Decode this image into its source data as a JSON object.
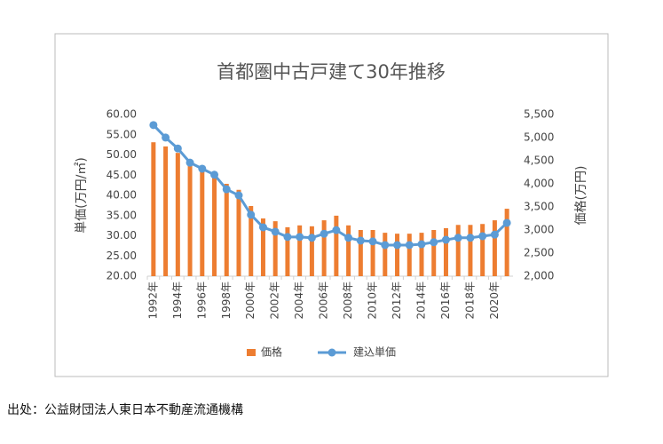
{
  "chart_data": {
    "type": "bar_line",
    "title": "首都圏中古戸建て30年推移",
    "y_label": "単価(万円/㎡)",
    "y2_label": "価格(万円)",
    "categories": [
      "1992年",
      null,
      "1994年",
      null,
      "1996年",
      null,
      "1998年",
      null,
      "2000年",
      null,
      "2002年",
      null,
      "2004年",
      null,
      "2006年",
      null,
      "2008年",
      null,
      "2010年",
      null,
      "2012年",
      null,
      "2014年",
      null,
      "2016年",
      null,
      "2018年",
      null,
      "2020年",
      null
    ],
    "series": [
      {
        "name": "価格",
        "type": "bar",
        "axis": "y2",
        "color": "#ed7d31",
        "values": [
          4900,
          4810,
          4670,
          4460,
          4330,
          4170,
          4000,
          3870,
          3520,
          3250,
          3190,
          3060,
          3100,
          3080,
          3210,
          3310,
          3100,
          3000,
          3000,
          2940,
          2920,
          2920,
          2940,
          3000,
          3040,
          3110,
          3110,
          3130,
          3210,
          3460
        ]
      },
      {
        "name": "建込単価",
        "type": "line",
        "axis": "y",
        "color": "#5b9bd5",
        "values": [
          57.4,
          54.3,
          51.6,
          48.1,
          46.6,
          45.1,
          41.5,
          40.0,
          35.2,
          32.1,
          31.0,
          29.7,
          29.7,
          29.5,
          30.5,
          31.4,
          29.5,
          28.8,
          28.6,
          27.7,
          27.7,
          27.7,
          27.9,
          28.4,
          29.0,
          29.5,
          29.5,
          29.9,
          30.3,
          33.2
        ]
      }
    ],
    "ylim": [
      20,
      60
    ],
    "yticks": [
      {
        "value": 20,
        "label": "20.00"
      },
      {
        "value": 25,
        "label": "25.00"
      },
      {
        "value": 30,
        "label": "30.00"
      },
      {
        "value": 35,
        "label": "35.00"
      },
      {
        "value": 40,
        "label": "40.00"
      },
      {
        "value": 45,
        "label": "45.00"
      },
      {
        "value": 50,
        "label": "50.00"
      },
      {
        "value": 55,
        "label": "55.00"
      },
      {
        "value": 60,
        "label": "60.00"
      }
    ],
    "y2lim": [
      2000,
      5500
    ],
    "y2ticks": [
      {
        "value": 2000,
        "label": "2,000"
      },
      {
        "value": 2500,
        "label": "2,500"
      },
      {
        "value": 3000,
        "label": "3,000"
      },
      {
        "value": 3500,
        "label": "3,500"
      },
      {
        "value": 4000,
        "label": "4,000"
      },
      {
        "value": 4500,
        "label": "4,500"
      },
      {
        "value": 5000,
        "label": "5,000"
      },
      {
        "value": 5500,
        "label": "5,500"
      }
    ],
    "legend": "bottom",
    "source": "出处：公益財団法人東日本不動産流通機構"
  }
}
